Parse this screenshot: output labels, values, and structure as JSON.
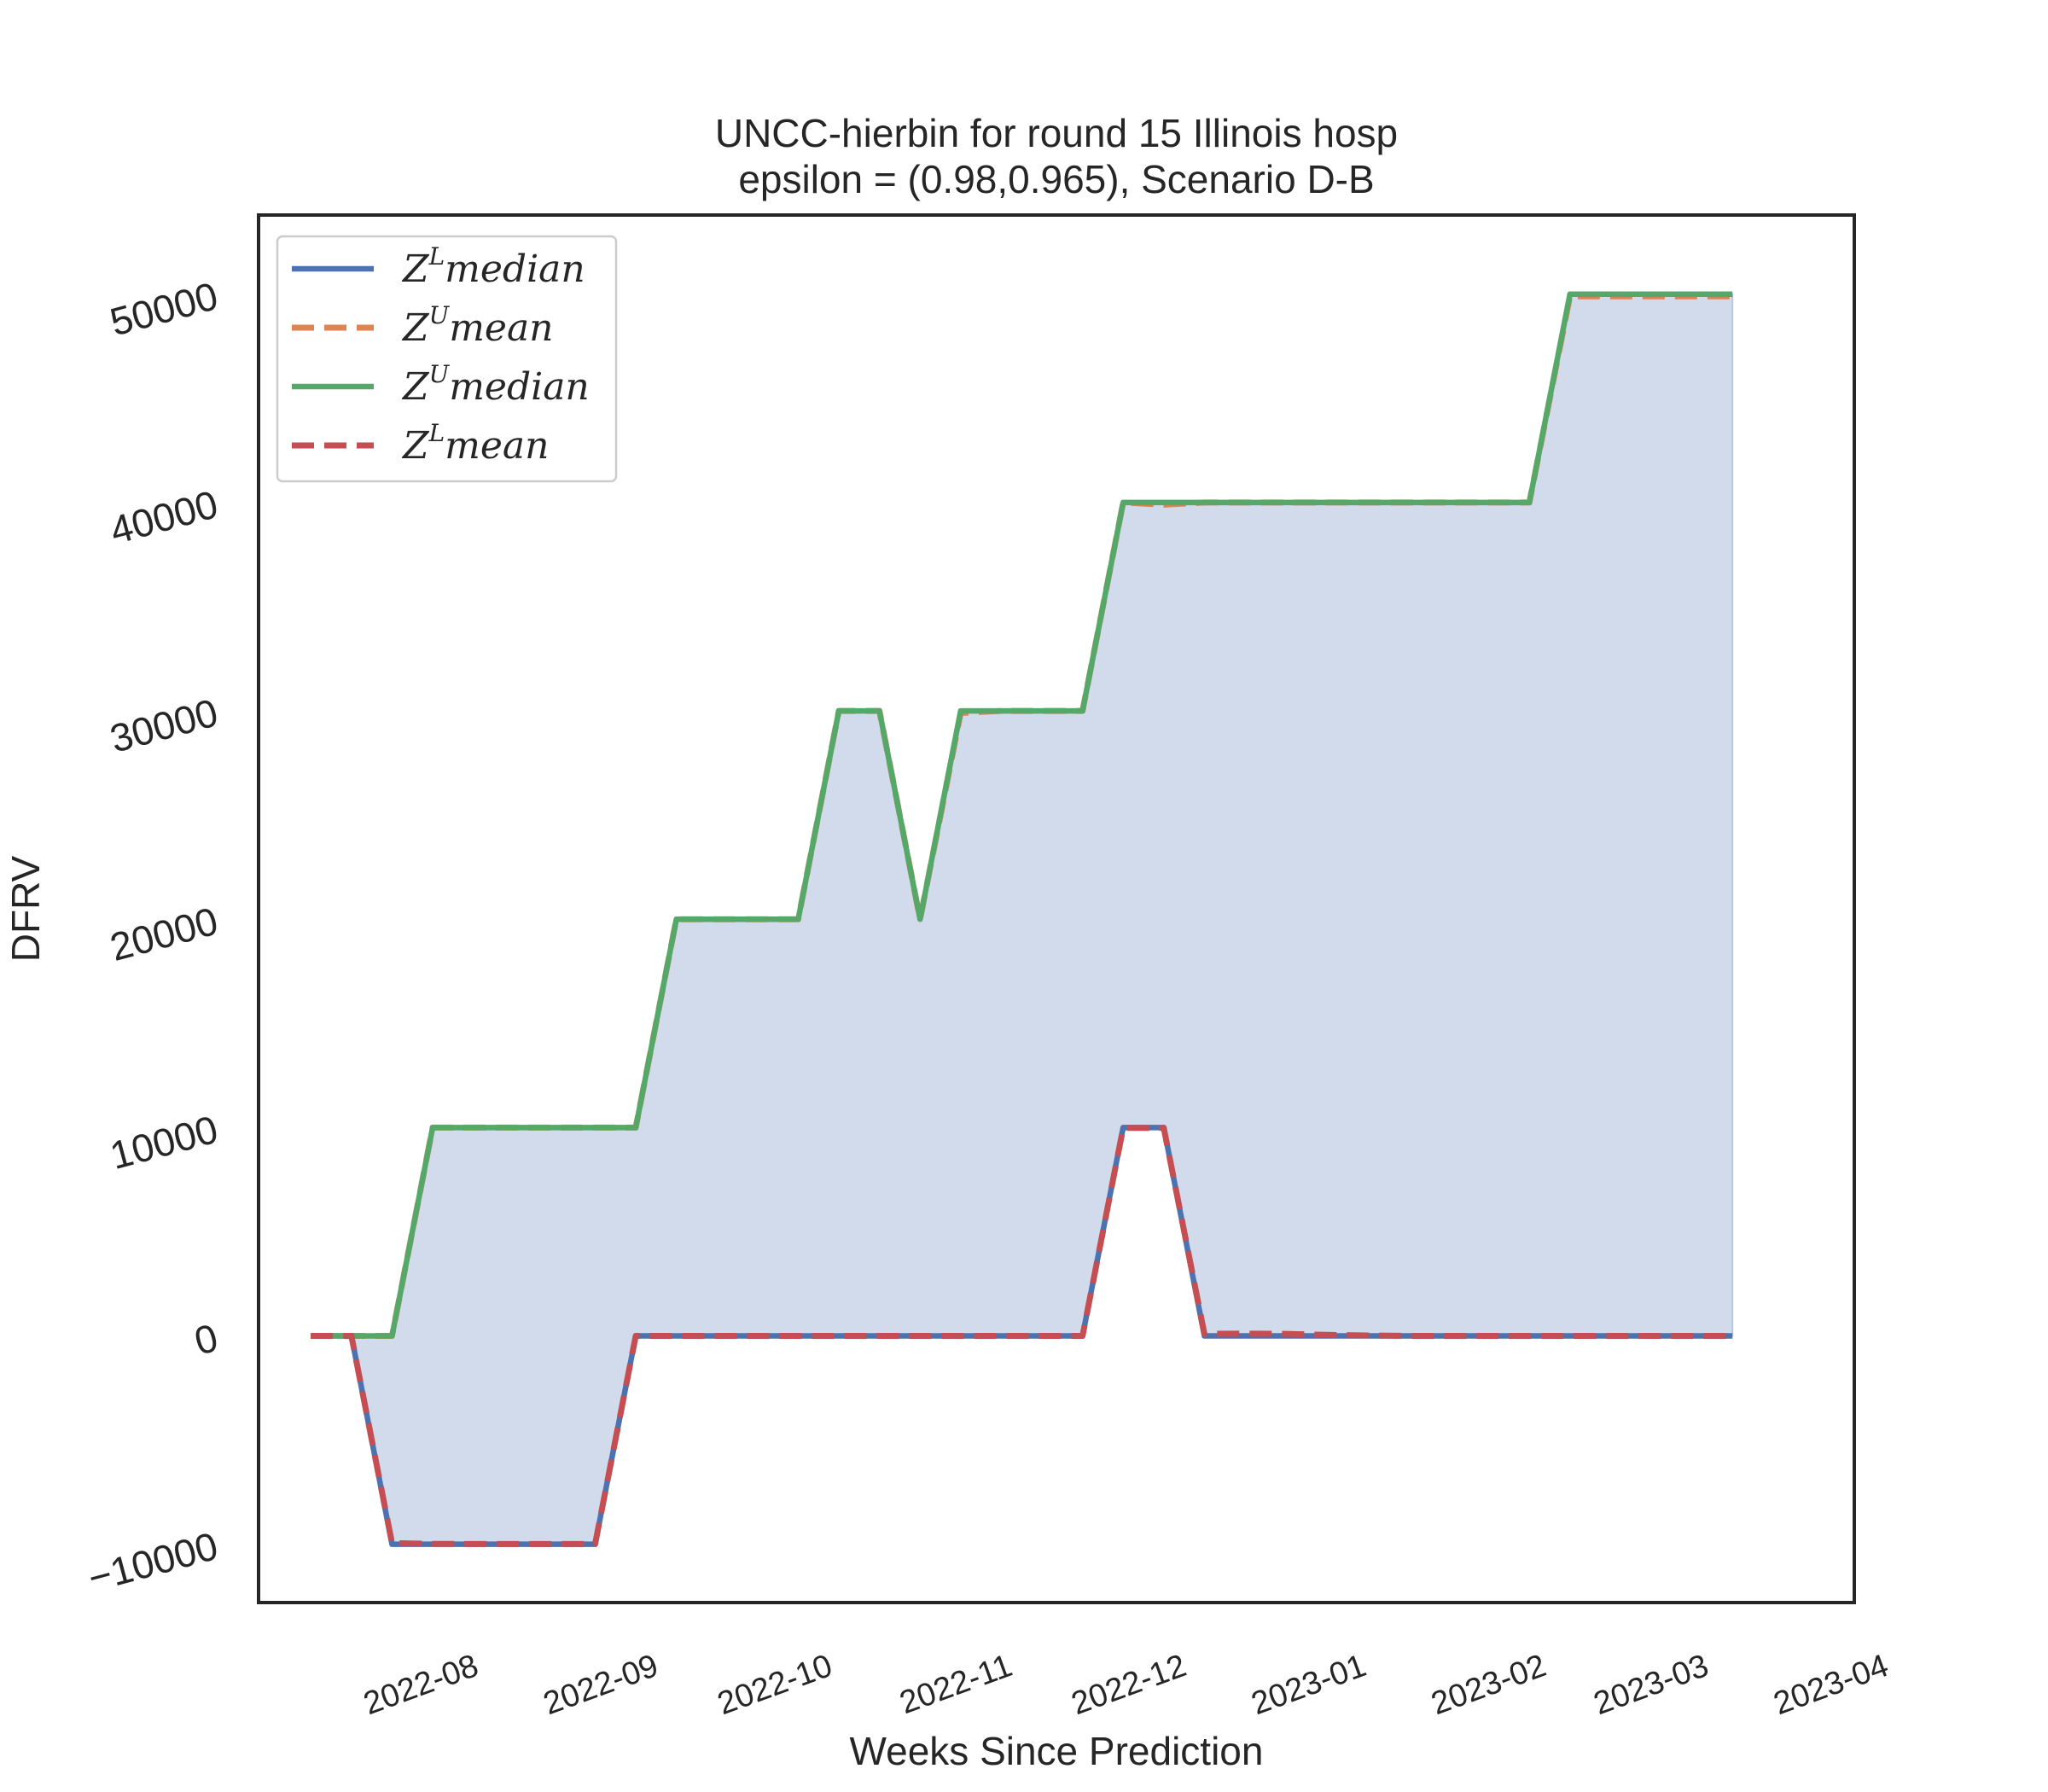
{
  "chart_data": {
    "type": "line",
    "title": "UNCC-hierbin for round 15 Illinois  hosp",
    "subtitle": "epsilon = (0.98,0.965), Scenario D-B",
    "xlabel": "Weeks Since Prediction",
    "ylabel": "DFRV",
    "ylim": [
      -12800,
      53800
    ],
    "xlim": [
      "2022-07-07",
      "2023-04-08"
    ],
    "grid": false,
    "legend_position": "upper-left",
    "x_ticks": [
      "2022-08",
      "2022-09",
      "2022-10",
      "2022-11",
      "2022-12",
      "2023-01",
      "2023-02",
      "2023-03",
      "2023-04"
    ],
    "y_ticks": [
      -10000,
      0,
      10000,
      20000,
      30000,
      40000,
      50000
    ],
    "y_tick_labels": [
      "−10000",
      "0",
      "10000",
      "20000",
      "30000",
      "40000",
      "50000"
    ],
    "x": [
      "2022-07-16",
      "2022-07-23",
      "2022-07-30",
      "2022-08-06",
      "2022-08-13",
      "2022-08-20",
      "2022-08-27",
      "2022-09-03",
      "2022-09-10",
      "2022-09-17",
      "2022-09-24",
      "2022-10-01",
      "2022-10-08",
      "2022-10-15",
      "2022-10-22",
      "2022-10-29",
      "2022-11-05",
      "2022-11-12",
      "2022-11-19",
      "2022-11-26",
      "2022-12-03",
      "2022-12-10",
      "2022-12-17",
      "2022-12-24",
      "2022-12-31",
      "2023-01-07",
      "2023-01-14",
      "2023-01-21",
      "2023-01-28",
      "2023-02-04",
      "2023-02-11",
      "2023-02-18",
      "2023-02-25",
      "2023-03-04",
      "2023-03-11",
      "2023-03-18"
    ],
    "fill_between": {
      "lower": "Z^L median",
      "upper": "Z^U median",
      "color": "#d2dbeb"
    },
    "series": [
      {
        "name": "Z^L median",
        "sup": "L",
        "base": "median",
        "color": "#4c72b0",
        "dashed": false,
        "values": [
          0,
          0,
          -10000,
          -10000,
          -10000,
          -10000,
          -10000,
          -10000,
          0,
          0,
          0,
          0,
          0,
          0,
          0,
          0,
          0,
          0,
          0,
          0,
          10000,
          10000,
          0,
          0,
          0,
          0,
          0,
          0,
          0,
          0,
          0,
          0,
          0,
          0,
          0,
          0
        ]
      },
      {
        "name": "Z^U mean",
        "sup": "U",
        "base": "mean",
        "color": "#dd8452",
        "dashed": true,
        "values": [
          0,
          0,
          0,
          10000,
          10000,
          10000,
          10000,
          10000,
          10000,
          20000,
          20000,
          20000,
          20000,
          30000,
          30000,
          20000,
          29900,
          30000,
          30000,
          30000,
          40000,
          39900,
          40000,
          40000,
          40000,
          40000,
          40000,
          40000,
          40000,
          40000,
          40000,
          49900,
          49900,
          49900,
          49900,
          49900
        ]
      },
      {
        "name": "Z^U median",
        "sup": "U",
        "base": "median",
        "color": "#55a868",
        "dashed": false,
        "values": [
          0,
          0,
          0,
          10000,
          10000,
          10000,
          10000,
          10000,
          10000,
          20000,
          20000,
          20000,
          20000,
          30000,
          30000,
          20000,
          30000,
          30000,
          30000,
          30000,
          40000,
          40000,
          40000,
          40000,
          40000,
          40000,
          40000,
          40000,
          40000,
          40000,
          40000,
          50000,
          50000,
          50000,
          50000,
          50000
        ]
      },
      {
        "name": "Z^L mean",
        "sup": "L",
        "base": "mean",
        "color": "#c44e52",
        "dashed": true,
        "values": [
          0,
          0,
          -9950,
          -9980,
          -9990,
          -9990,
          -9990,
          -9990,
          0,
          0,
          0,
          0,
          0,
          0,
          0,
          0,
          0,
          0,
          0,
          0,
          9980,
          9980,
          100,
          110,
          100,
          50,
          20,
          0,
          0,
          0,
          0,
          0,
          0,
          0,
          0,
          0
        ]
      }
    ]
  }
}
